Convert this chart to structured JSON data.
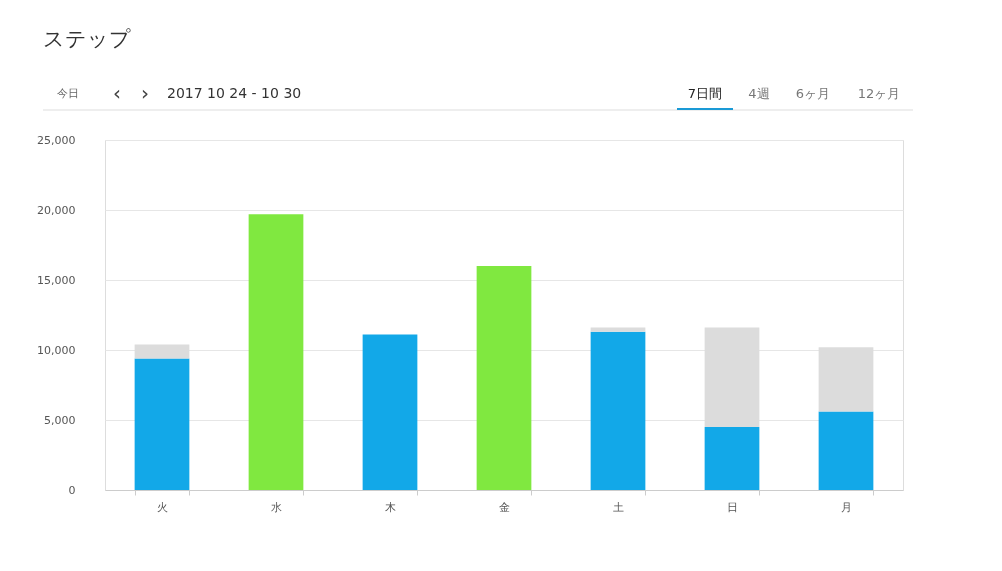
{
  "chart_data": {
    "type": "bar",
    "title": "ステップ",
    "annotations": [
      "今日",
      "‹",
      "›",
      "2017 10 24 - 10 30",
      "7日間",
      "4週",
      "6ヶ月",
      "12ヶ月"
    ],
    "categories": [
      "火",
      "水",
      "木",
      "金",
      "土",
      "日",
      "月"
    ],
    "stacked": true,
    "series": [
      {
        "color": "#12a8e8",
        "values": [
          9400,
          null,
          11100,
          null,
          11300,
          4500,
          5600
        ]
      },
      {
        "color": "#80e840",
        "values": [
          null,
          19700,
          null,
          16000,
          null,
          null,
          null
        ]
      },
      {
        "color": "#dcdcdc",
        "values": [
          1000,
          null,
          null,
          null,
          300,
          7100,
          4600
        ]
      }
    ],
    "ylim": [
      0,
      25000
    ],
    "yticks": [
      0,
      {
        "value": 5000,
        "label": "5,000"
      },
      {
        "value": 10000,
        "label": "10,000"
      },
      {
        "value": 15000,
        "label": "15,000"
      },
      {
        "value": 20000,
        "label": "20,000"
      },
      {
        "value": 25000,
        "label": "25,000"
      }
    ],
    "grid": "y"
  }
}
